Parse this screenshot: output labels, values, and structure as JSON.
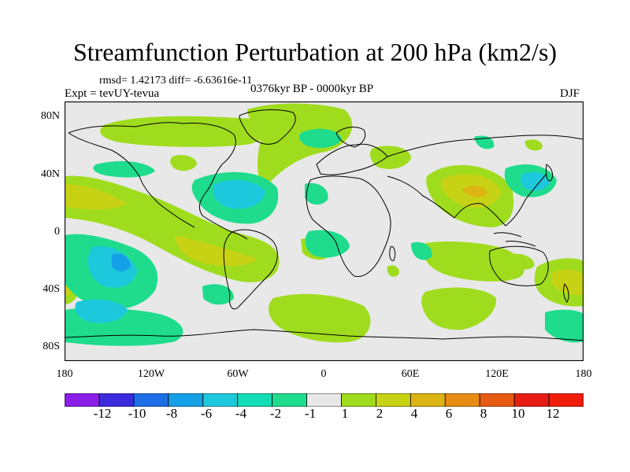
{
  "title": "Streamfunction Perturbation at 200 hPa (km2/s)",
  "stats": "rmsd= 1.42173 diff= -6.63616e-11",
  "experiment": "Expt = tevUY-tevua",
  "period": "0376kyr BP - 0000kyr BP",
  "season": "DJF",
  "map": {
    "projection": "cylindrical equidistant",
    "lat_range": [
      -90,
      90
    ],
    "lon_range": [
      -180,
      180
    ],
    "lat_ticks": [
      "80N",
      "40N",
      "0",
      "40S",
      "80S"
    ],
    "lon_ticks": [
      "180",
      "120W",
      "60W",
      "0",
      "60E",
      "120E",
      "180"
    ]
  },
  "colorbar": {
    "labels": [
      "-12",
      "-10",
      "-8",
      "-6",
      "-4",
      "-2",
      "-1",
      "1",
      "2",
      "4",
      "6",
      "8",
      "10",
      "12"
    ],
    "colors": [
      "#8a1ee6",
      "#3c2adc",
      "#1e6ee6",
      "#14a0e6",
      "#1ec8dc",
      "#14dcb4",
      "#1edc8c",
      "#e8e8e8",
      "#a0dc1e",
      "#c8d214",
      "#dcb414",
      "#e68c14",
      "#e65a14",
      "#e61e14",
      "#f01e0a"
    ]
  }
}
